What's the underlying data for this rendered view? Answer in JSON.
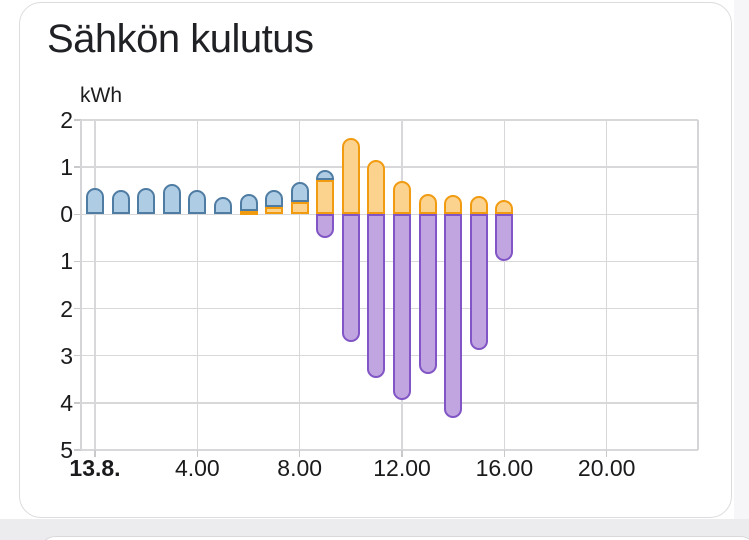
{
  "card": {
    "title": "Sähkön kulutus"
  },
  "chart": {
    "unit_label": "kWh",
    "y_axis": {
      "tick_labels": [
        "2",
        "1",
        "0",
        "1",
        "2",
        "3",
        "4",
        "5"
      ]
    },
    "x_axis": {
      "ticks": [
        {
          "label": "13.8.",
          "hour": 0,
          "bold": true
        },
        {
          "label": "4.00",
          "hour": 4,
          "bold": false
        },
        {
          "label": "8.00",
          "hour": 8,
          "bold": false
        },
        {
          "label": "12.00",
          "hour": 12,
          "bold": false
        },
        {
          "label": "16.00",
          "hour": 16,
          "bold": false
        },
        {
          "label": "20.00",
          "hour": 20,
          "bold": false
        }
      ]
    }
  },
  "chart_data": {
    "type": "bar",
    "stacked": true,
    "title": "Sähkön kulutus",
    "ylabel": "kWh",
    "ylim": [
      -5,
      2
    ],
    "y_tick_labels_shown_as_absolute_values": true,
    "x_tick_labels": [
      "13.8.",
      "4.00",
      "8.00",
      "12.00",
      "16.00",
      "20.00"
    ],
    "grid": true,
    "legend": "none",
    "categories": [
      "0.00",
      "1.00",
      "2.00",
      "3.00",
      "4.00",
      "5.00",
      "6.00",
      "7.00",
      "8.00",
      "9.00",
      "10.00",
      "11.00",
      "12.00",
      "13.00",
      "14.00",
      "15.00",
      "16.00"
    ],
    "series": [
      {
        "name": "blue-top-segment",
        "fill": "#aecce4",
        "border": "#4f7ca3",
        "values": [
          0.55,
          0.52,
          0.55,
          0.64,
          0.52,
          0.37,
          0.36,
          0.35,
          0.42,
          0.21,
          0,
          0,
          0,
          0,
          0,
          0,
          0
        ]
      },
      {
        "name": "orange-bottom-segment",
        "fill": "#fbd28e",
        "border": "#f19b10",
        "values": [
          0,
          0,
          0,
          0,
          0,
          0,
          0.08,
          0.16,
          0.26,
          0.72,
          1.62,
          1.16,
          0.7,
          0.42,
          0.41,
          0.39,
          0.3
        ]
      },
      {
        "name": "purple-negative-segment",
        "fill": "#c0a5e1",
        "border": "#8155c5",
        "values": [
          0,
          0,
          0,
          0,
          0,
          0,
          0,
          0,
          0,
          -0.5,
          -2.72,
          -3.47,
          -3.94,
          -3.38,
          -4.32,
          -2.87,
          -1.0
        ]
      }
    ]
  },
  "colors": {
    "gridline": "#d8d8da",
    "text": "#1b1b1d",
    "card_border": "#dcdcde",
    "gap_background": "#ececee"
  }
}
